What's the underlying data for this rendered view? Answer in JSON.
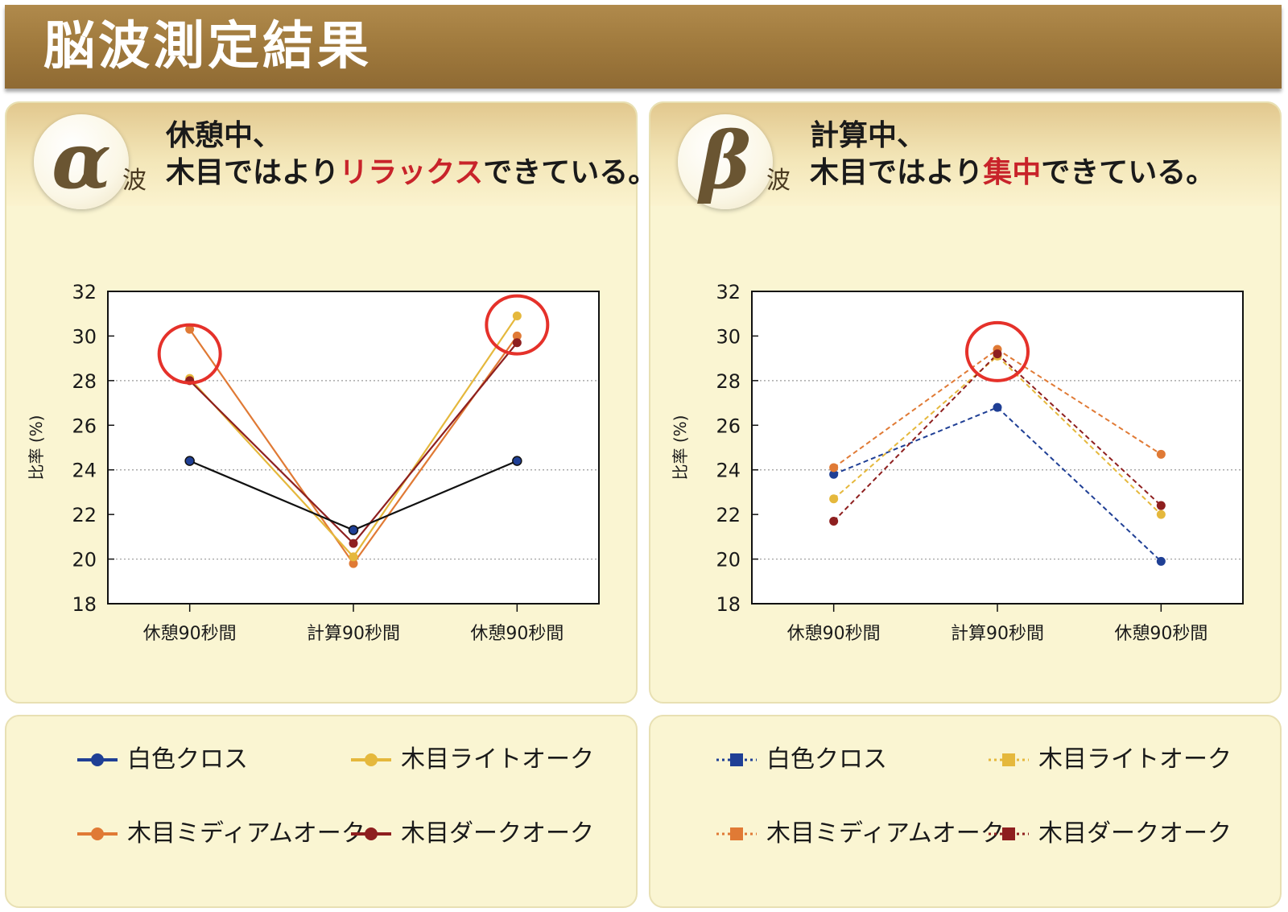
{
  "header": {
    "title": "脳波測定結果"
  },
  "panels": [
    {
      "badge_symbol": "α",
      "badge_sub": "波",
      "headline_line1": "休憩中、",
      "headline_line2_pre": "木目ではより",
      "headline_line2_accent": "リラックス",
      "headline_line2_post": "できている。",
      "accent_color": "#c8232a"
    },
    {
      "badge_symbol": "β",
      "badge_sub": "波",
      "headline_line1": "計算中、",
      "headline_line2_pre": "木目ではより",
      "headline_line2_accent": "集中",
      "headline_line2_post": "できている。",
      "accent_color": "#c8232a"
    }
  ],
  "legend": [
    {
      "label": "白色クロス",
      "color": "#1f3f95"
    },
    {
      "label": "木目ライトオーク",
      "color": "#e5b83c"
    },
    {
      "label": "木目ミディアムオーク",
      "color": "#e07a35"
    },
    {
      "label": "木目ダークオーク",
      "color": "#8e1f1f"
    }
  ],
  "chart_data": [
    {
      "type": "line",
      "line_style": "solid",
      "marker": "circle",
      "categories": [
        "休憩90秒間",
        "計算90秒間",
        "休憩90秒間"
      ],
      "ylabel": "比率 (%)",
      "ylim": [
        18,
        32
      ],
      "yticks": [
        18,
        20,
        22,
        24,
        26,
        28,
        30,
        32
      ],
      "gridlines": [
        20,
        24,
        28
      ],
      "series": [
        {
          "name": "木目ミディアムオーク",
          "color": "#e07a35",
          "values": [
            30.3,
            19.8,
            30.0
          ]
        },
        {
          "name": "木目ライトオーク",
          "color": "#e5b83c",
          "values": [
            28.1,
            20.1,
            30.9
          ]
        },
        {
          "name": "木目ダークオーク",
          "color": "#8e1f1f",
          "values": [
            28.0,
            20.7,
            29.7
          ]
        },
        {
          "name": "白色クロス",
          "color": "#111111",
          "marker_color": "#1f3f95",
          "values": [
            24.4,
            21.3,
            24.4
          ]
        }
      ],
      "highlights": [
        {
          "category": 0,
          "value": 29.2
        },
        {
          "category": 2,
          "value": 30.5
        }
      ],
      "highlight_color": "#e5312a"
    },
    {
      "type": "line",
      "line_style": "dashed",
      "marker": "circle",
      "categories": [
        "休憩90秒間",
        "計算90秒間",
        "休憩90秒間"
      ],
      "ylabel": "比率 (%)",
      "ylim": [
        18,
        32
      ],
      "yticks": [
        18,
        20,
        22,
        24,
        26,
        28,
        30,
        32
      ],
      "gridlines": [
        20,
        24,
        28
      ],
      "series": [
        {
          "name": "白色クロス",
          "color": "#1f3f95",
          "values": [
            23.8,
            26.8,
            19.9
          ]
        },
        {
          "name": "木目ライトオーク",
          "color": "#e5b83c",
          "values": [
            22.7,
            29.1,
            22.0
          ]
        },
        {
          "name": "木目ミディアムオーク",
          "color": "#e07a35",
          "values": [
            24.1,
            29.4,
            24.7
          ]
        },
        {
          "name": "木目ダークオーク",
          "color": "#8e1f1f",
          "values": [
            21.7,
            29.2,
            22.4
          ]
        }
      ],
      "highlights": [
        {
          "category": 1,
          "value": 29.3
        }
      ],
      "highlight_color": "#e5312a"
    }
  ]
}
